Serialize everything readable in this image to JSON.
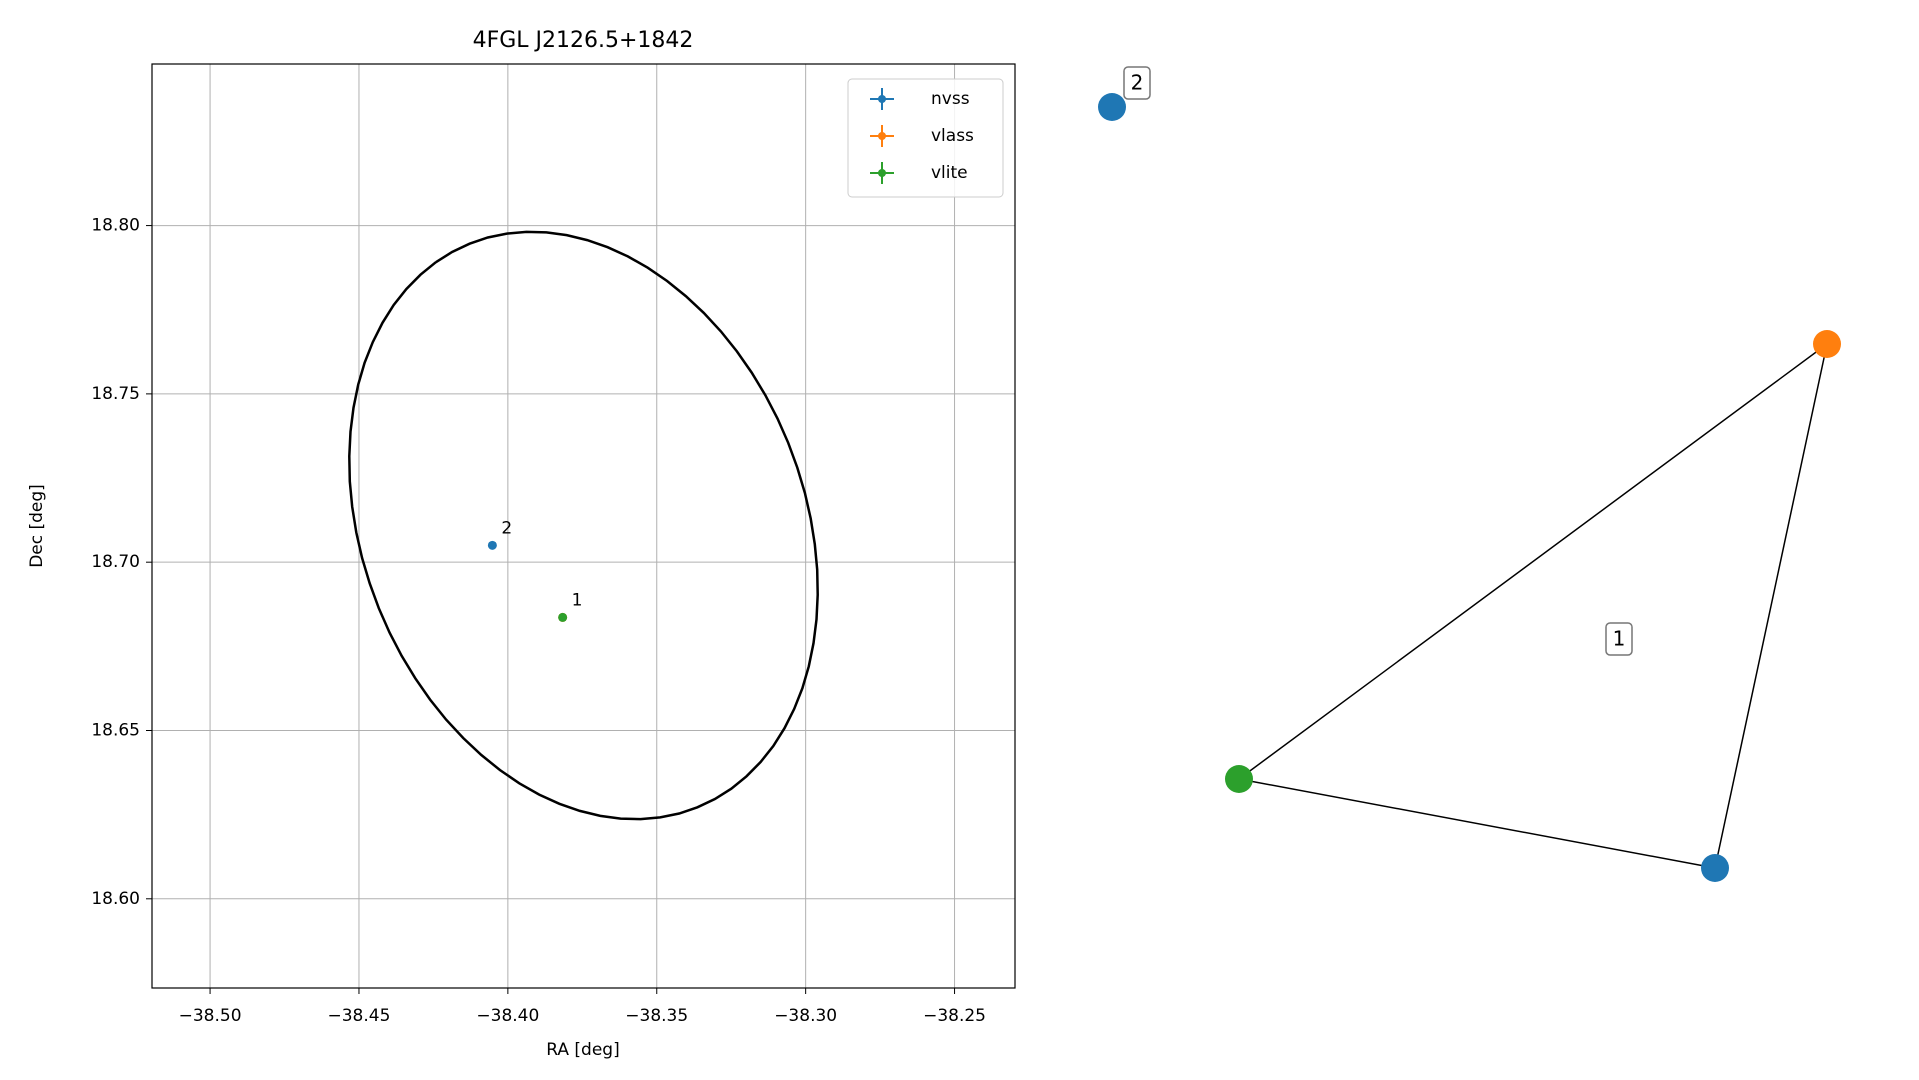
{
  "chart_data": [
    {
      "type": "scatter",
      "title": "4FGL J2126.5+1842",
      "x_label": "RA [deg]",
      "y_label": "Dec [deg]",
      "xlim": [
        -38.5195,
        -38.2297
      ],
      "ylim": [
        18.5735,
        18.848
      ],
      "xticks": [
        {
          "value": -38.5,
          "label": "−38.50"
        },
        {
          "value": -38.45,
          "label": "−38.45"
        },
        {
          "value": -38.4,
          "label": "−38.40"
        },
        {
          "value": -38.35,
          "label": "−38.35"
        },
        {
          "value": -38.3,
          "label": "−38.30"
        },
        {
          "value": -38.25,
          "label": "−38.25"
        }
      ],
      "yticks": [
        {
          "value": 18.6,
          "label": "18.60"
        },
        18.65,
        {
          "value": 18.7,
          "label": "18.70"
        },
        18.75,
        {
          "value": 18.8,
          "label": "18.80"
        }
      ],
      "grid": true,
      "legend": "upper right",
      "series": [
        {
          "name": "nvss",
          "color": "#1f77b4",
          "x": [
            -38.4052
          ],
          "values": [
            18.705
          ]
        },
        {
          "name": "vlass",
          "color": "#ff7f0e",
          "x": [
            -38.3816
          ],
          "values": [
            18.6836
          ]
        },
        {
          "name": "vlite",
          "color": "#2ca02c",
          "x": [
            -38.3816
          ],
          "values": [
            18.6836
          ]
        }
      ],
      "annotations": [
        {
          "text": "2",
          "x": -38.4052,
          "y": 18.705
        },
        {
          "text": "1",
          "x": -38.3816,
          "y": 18.6836
        }
      ],
      "ellipse": {
        "center": [
          -38.3746,
          18.7109
        ],
        "semi_major": 0.0926,
        "semi_minor": 0.0723,
        "angle": 122.4,
        "color": "#000000"
      }
    },
    {
      "type": "graph",
      "nodes": [
        {
          "color": "#1f77b4"
        },
        {
          "color": "#ff7f0e"
        },
        {
          "color": "#2ca02c"
        },
        {
          "color": "#1f77b4"
        }
      ],
      "edges": [
        [
          1,
          2
        ],
        [
          2,
          3
        ],
        [
          3,
          1
        ]
      ],
      "labels": [
        "2",
        "1"
      ]
    }
  ]
}
